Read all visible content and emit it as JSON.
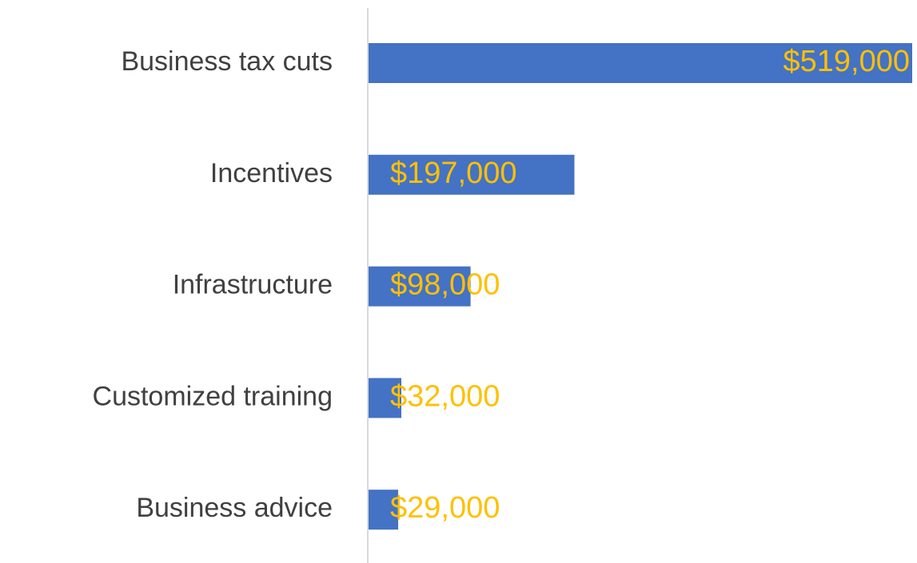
{
  "chart_data": {
    "type": "bar",
    "orientation": "horizontal",
    "categories": [
      "Business tax cuts",
      "Incentives",
      "Infrastructure",
      "Customized training",
      "Business advice"
    ],
    "values": [
      519000,
      197000,
      98000,
      32000,
      29000
    ],
    "value_labels": [
      "$519,000",
      "$197,000",
      "$98,000",
      "$32,000",
      "$29,000"
    ],
    "color": "#4472c4",
    "label_color": "#ffc000",
    "xlim": [
      0,
      519000
    ]
  }
}
